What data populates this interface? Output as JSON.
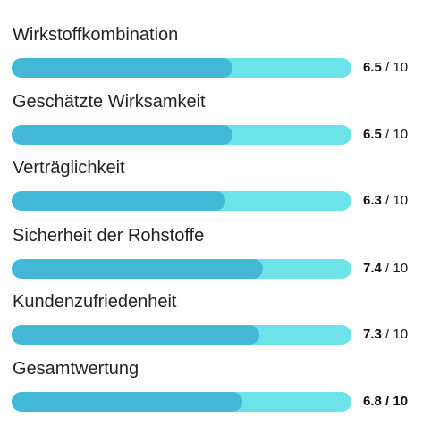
{
  "colors": {
    "track": "#6ce3e8",
    "fill": "#43b8d6"
  },
  "ratings": [
    {
      "label": "Wirkstoffkombination",
      "value": "6.5",
      "max": "10",
      "score_fraction": 0.65
    },
    {
      "label": "Geschätzte Wirksamkeit",
      "value": "6.5",
      "max": "10",
      "score_fraction": 0.65
    },
    {
      "label": "Verträglichkeit",
      "value": "6.3",
      "max": "10",
      "score_fraction": 0.63
    },
    {
      "label": "Sicherheit der Rohstoffe",
      "value": "7.4",
      "max": "10",
      "score_fraction": 0.74
    },
    {
      "label": "Kundenzufriedenheit",
      "value": "7.3",
      "max": "10",
      "score_fraction": 0.73
    },
    {
      "label": "Gesamtwertung",
      "value": "6.8",
      "max": "10",
      "score_fraction": 0.68
    }
  ],
  "separator": "/"
}
